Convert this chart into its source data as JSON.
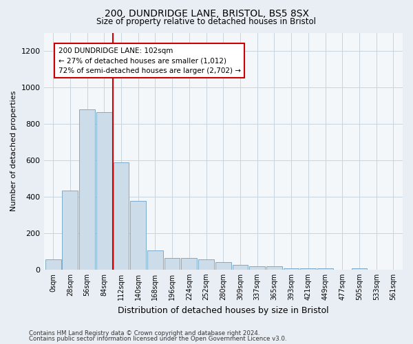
{
  "title": "200, DUNDRIDGE LANE, BRISTOL, BS5 8SX",
  "subtitle": "Size of property relative to detached houses in Bristol",
  "xlabel": "Distribution of detached houses by size in Bristol",
  "ylabel": "Number of detached properties",
  "bar_color": "#ccdce8",
  "bar_edge_color": "#7aaac8",
  "annotation_box_color": "#cc0000",
  "property_line_color": "#cc0000",
  "categories": [
    "0sqm",
    "28sqm",
    "56sqm",
    "84sqm",
    "112sqm",
    "140sqm",
    "168sqm",
    "196sqm",
    "224sqm",
    "252sqm",
    "280sqm",
    "309sqm",
    "337sqm",
    "365sqm",
    "393sqm",
    "421sqm",
    "449sqm",
    "477sqm",
    "505sqm",
    "533sqm",
    "561sqm"
  ],
  "values": [
    55,
    435,
    880,
    865,
    590,
    375,
    105,
    65,
    65,
    55,
    40,
    25,
    20,
    20,
    5,
    5,
    5,
    0,
    5,
    0,
    0
  ],
  "annotation_title": "200 DUNDRIDGE LANE: 102sqm",
  "annotation_line1": "← 27% of detached houses are smaller (1,012)",
  "annotation_line2": "72% of semi-detached houses are larger (2,702) →",
  "ylim": [
    0,
    1300
  ],
  "yticks": [
    0,
    200,
    400,
    600,
    800,
    1000,
    1200
  ],
  "footer_line1": "Contains HM Land Registry data © Crown copyright and database right 2024.",
  "footer_line2": "Contains public sector information licensed under the Open Government Licence v3.0.",
  "background_color": "#e8eef4",
  "plot_background_color": "#f4f7fa",
  "grid_color": "#c8d4de"
}
